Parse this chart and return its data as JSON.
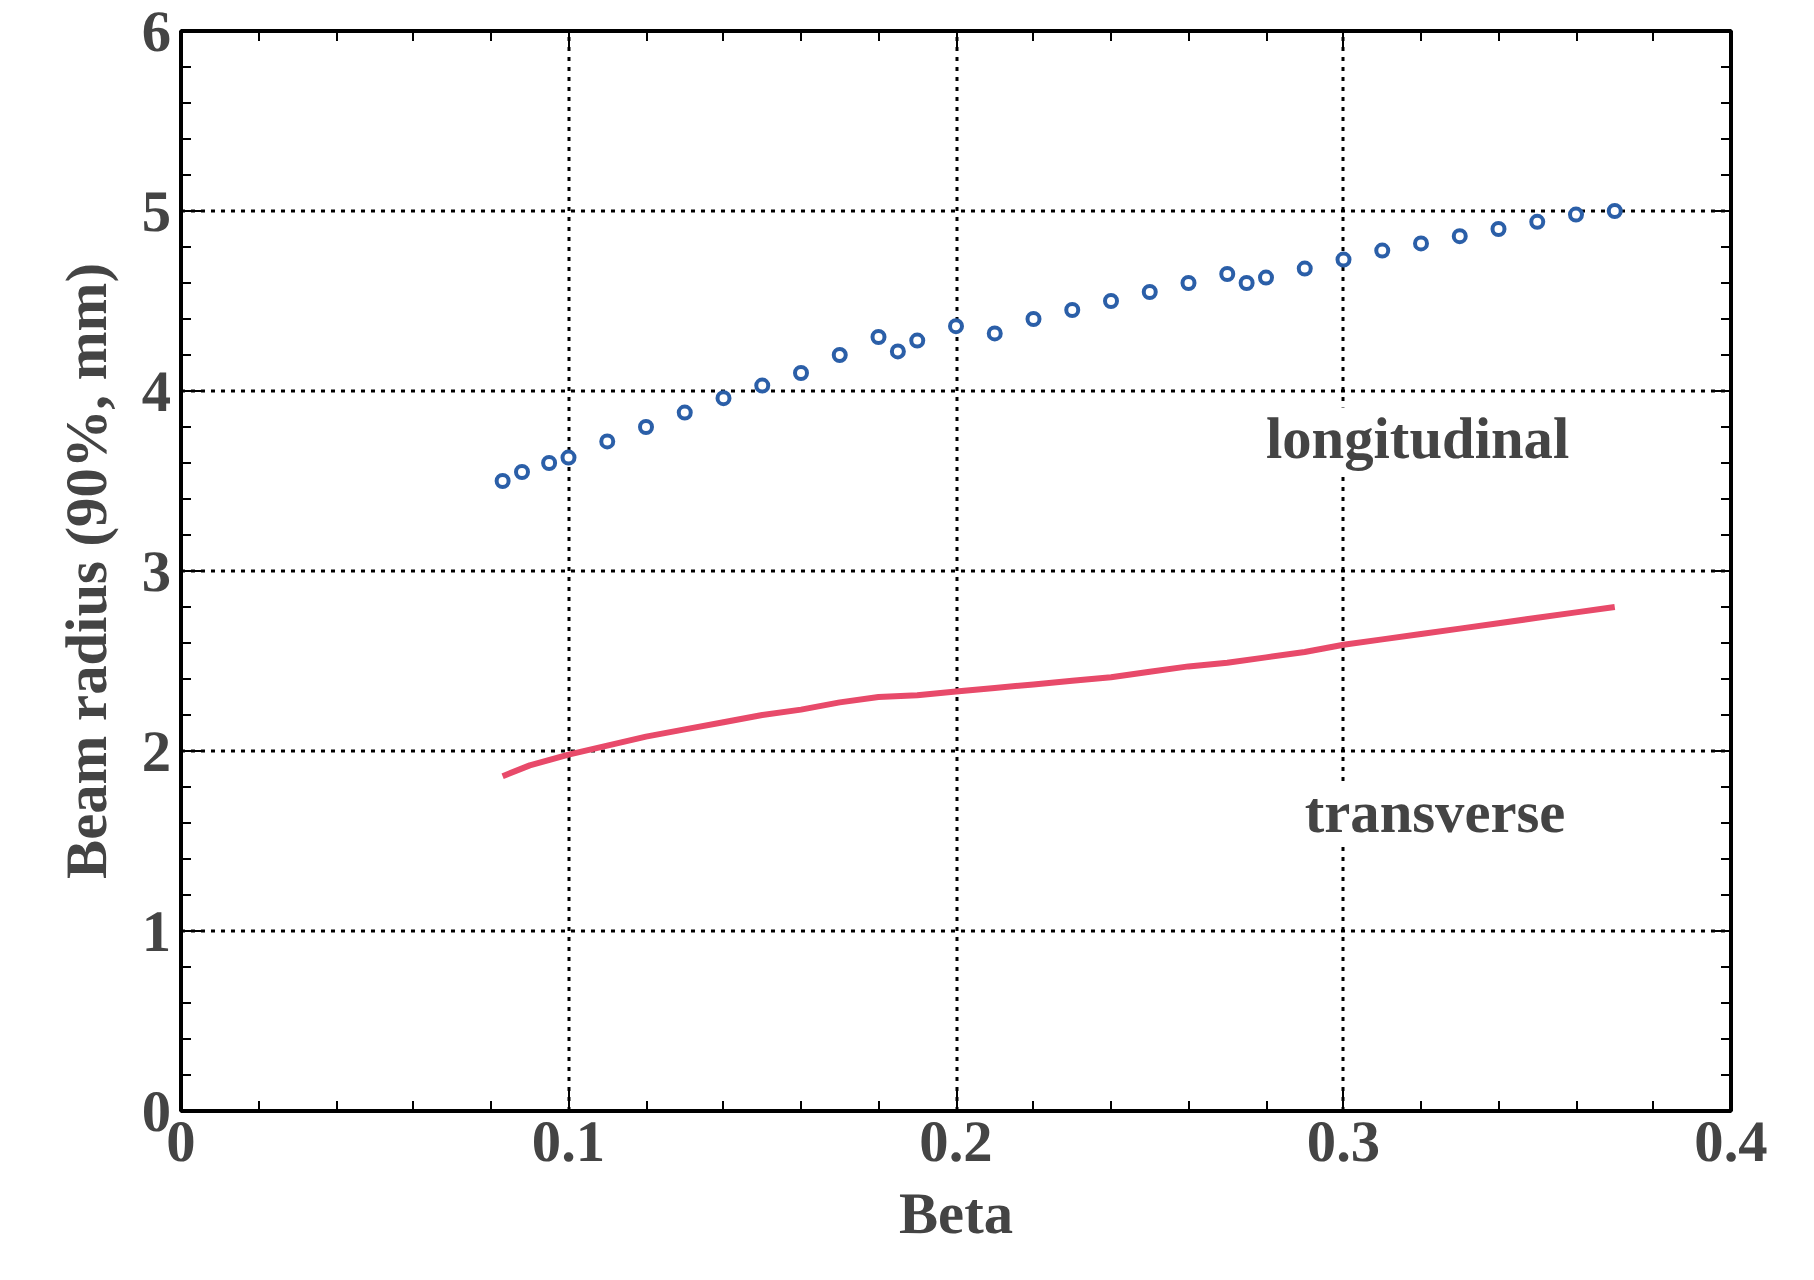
{
  "chart_data": {
    "type": "line",
    "xlabel": "Beta",
    "ylabel": "Beam radius (90%, mm)",
    "xlim": [
      0,
      0.4
    ],
    "ylim": [
      0,
      6
    ],
    "xticks": [
      0,
      0.1,
      0.2,
      0.3,
      0.4
    ],
    "yticks": [
      0,
      1,
      2,
      3,
      4,
      5,
      6
    ],
    "grid": true,
    "series": [
      {
        "name": "longitudinal",
        "type": "scatter",
        "marker": "circle",
        "color": "#2b5fa8",
        "x": [
          0.083,
          0.088,
          0.095,
          0.1,
          0.11,
          0.12,
          0.13,
          0.14,
          0.15,
          0.16,
          0.17,
          0.18,
          0.185,
          0.19,
          0.2,
          0.21,
          0.22,
          0.23,
          0.24,
          0.25,
          0.26,
          0.27,
          0.275,
          0.28,
          0.29,
          0.3,
          0.31,
          0.32,
          0.33,
          0.34,
          0.35,
          0.36,
          0.37
        ],
        "values": [
          3.5,
          3.55,
          3.6,
          3.63,
          3.72,
          3.8,
          3.88,
          3.96,
          4.03,
          4.1,
          4.2,
          4.3,
          4.22,
          4.28,
          4.36,
          4.32,
          4.4,
          4.45,
          4.5,
          4.55,
          4.6,
          4.65,
          4.6,
          4.63,
          4.68,
          4.73,
          4.78,
          4.82,
          4.86,
          4.9,
          4.94,
          4.98,
          5.0
        ]
      },
      {
        "name": "transverse",
        "marker": "none",
        "color": "#e84a6a",
        "x": [
          0.083,
          0.09,
          0.1,
          0.11,
          0.12,
          0.13,
          0.14,
          0.15,
          0.16,
          0.17,
          0.18,
          0.19,
          0.2,
          0.21,
          0.22,
          0.23,
          0.24,
          0.25,
          0.26,
          0.27,
          0.28,
          0.29,
          0.3,
          0.31,
          0.32,
          0.33,
          0.34,
          0.35,
          0.36,
          0.37
        ],
        "values": [
          1.86,
          1.92,
          1.98,
          2.03,
          2.08,
          2.12,
          2.16,
          2.2,
          2.23,
          2.27,
          2.3,
          2.31,
          2.33,
          2.35,
          2.37,
          2.39,
          2.41,
          2.44,
          2.47,
          2.49,
          2.52,
          2.55,
          2.59,
          2.62,
          2.65,
          2.68,
          2.71,
          2.74,
          2.77,
          2.8
        ]
      }
    ]
  }
}
